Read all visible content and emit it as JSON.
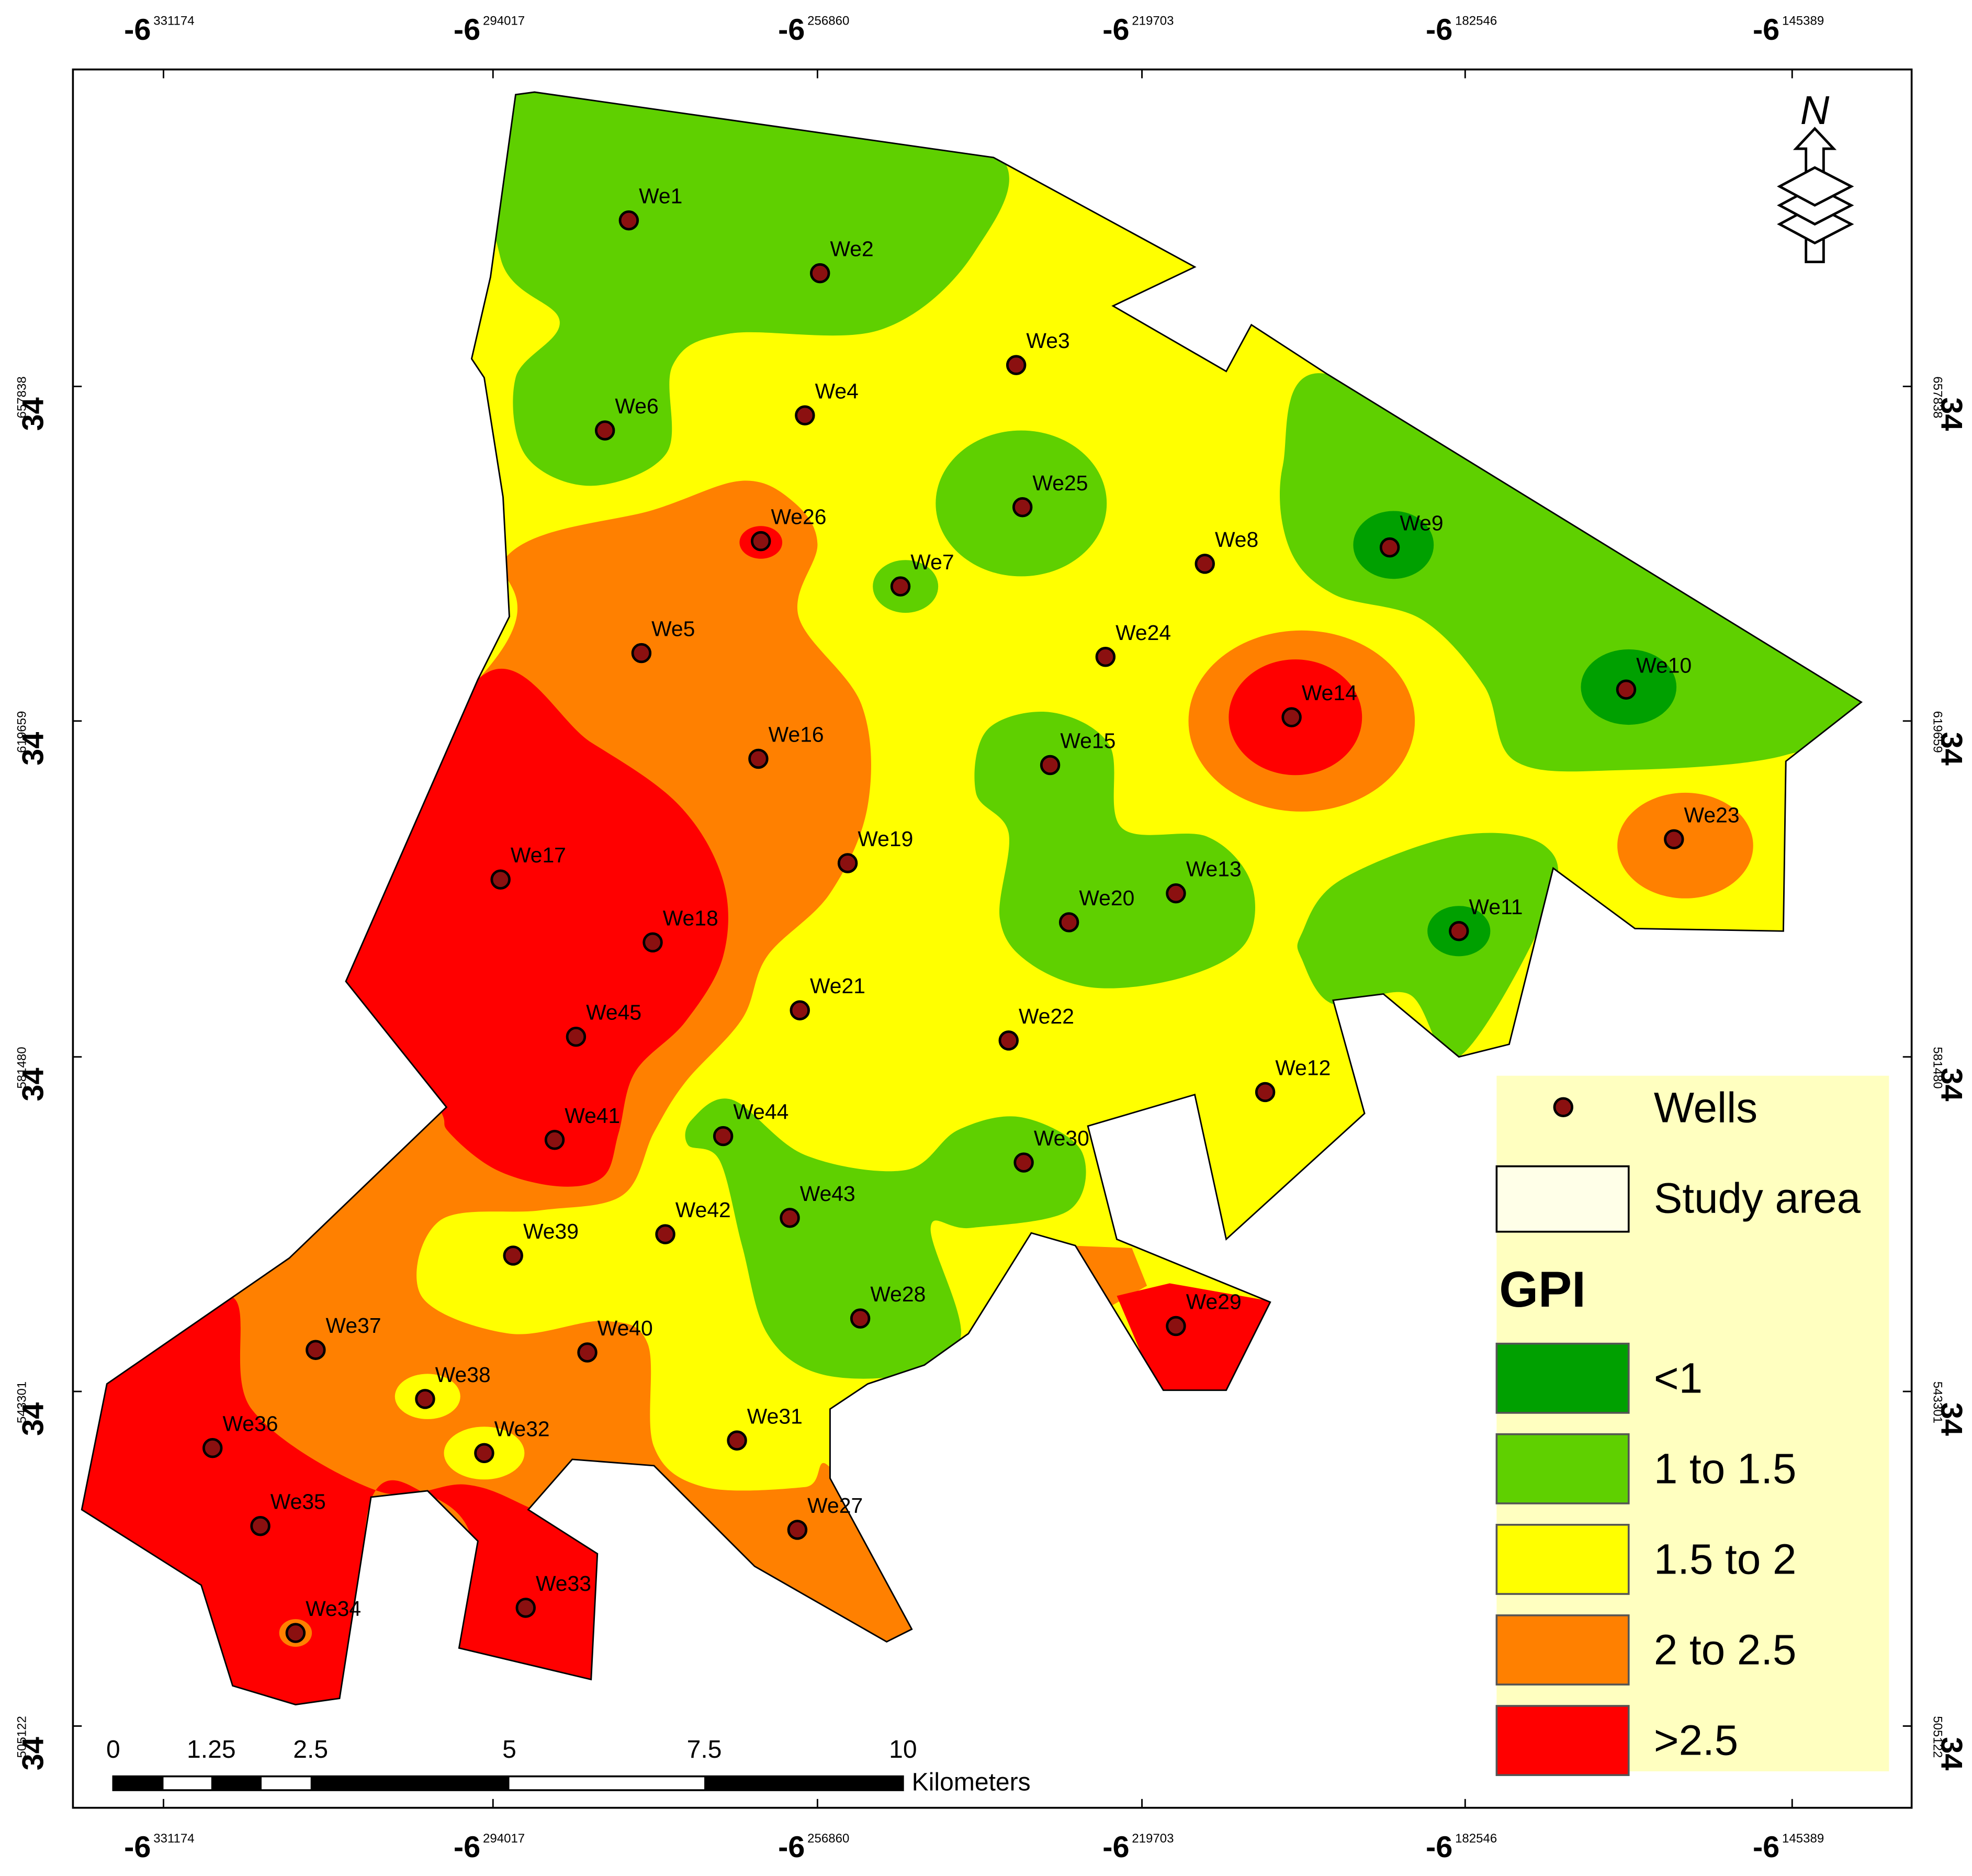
{
  "x_axis": [
    {
      "degree": "-6",
      "minutes": "331174"
    },
    {
      "degree": "-6",
      "minutes": "294017"
    },
    {
      "degree": "-6",
      "minutes": "256860"
    },
    {
      "degree": "-6",
      "minutes": "219703"
    },
    {
      "degree": "-6",
      "minutes": "182546"
    },
    {
      "degree": "-6",
      "minutes": "145389"
    }
  ],
  "y_axis": [
    {
      "degree": "34",
      "minutes": "657838"
    },
    {
      "degree": "34",
      "minutes": "619659"
    },
    {
      "degree": "34",
      "minutes": "581480"
    },
    {
      "degree": "34",
      "minutes": "543301"
    },
    {
      "degree": "34",
      "minutes": "505122"
    }
  ],
  "wells": [
    "We1",
    "We2",
    "We3",
    "We4",
    "We5",
    "We6",
    "We7",
    "We8",
    "We9",
    "We10",
    "We11",
    "We12",
    "We13",
    "We14",
    "We15",
    "We16",
    "We17",
    "We18",
    "We19",
    "We20",
    "We21",
    "We22",
    "We23",
    "We24",
    "We25",
    "We26",
    "We27",
    "We28",
    "We29",
    "We30",
    "We31",
    "We32",
    "We33",
    "We34",
    "We35",
    "We36",
    "We37",
    "We38",
    "We39",
    "We40",
    "We41",
    "We42",
    "We43",
    "We44",
    "We45"
  ],
  "legend": {
    "wells": "Wells",
    "study_area": "Study area",
    "title": "GPI",
    "classes": [
      {
        "label": "<1",
        "color": "#00a000"
      },
      {
        "label": "1 to 1.5",
        "color": "#5fd000"
      },
      {
        "label": "1.5 to 2",
        "color": "#ffff00"
      },
      {
        "label": "2 to  2.5",
        "color": "#ff8000"
      },
      {
        "label": ">2.5",
        "color": "#ff0000"
      }
    ]
  },
  "scale_bar": {
    "labels": [
      "0",
      "1.25",
      "2.5",
      "5",
      "7.5",
      "10"
    ],
    "unit": "Kilometers"
  },
  "north": "N"
}
